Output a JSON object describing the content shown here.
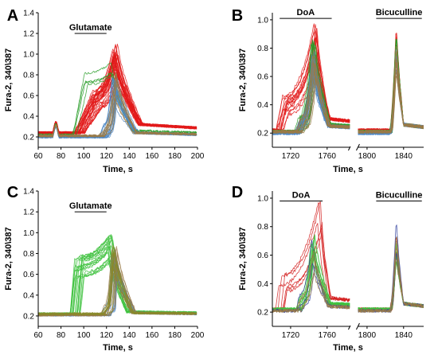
{
  "chart_data": [
    {
      "panel": "A",
      "type": "line",
      "xlabel": "Time,  s",
      "ylabel": "Fura-2, 340\\387",
      "xlim": [
        60,
        200
      ],
      "ylim": [
        0.1,
        1.4
      ],
      "xticks": [
        "60",
        "80",
        "100",
        "120",
        "140",
        "160",
        "180",
        "200"
      ],
      "yticks": [
        "0.2",
        "0.4",
        "0.6",
        "0.8",
        "1.0",
        "1.2",
        "1.4"
      ],
      "annotations": [
        {
          "text": "Glutamate",
          "x_start": 92,
          "x_end": 120,
          "y": 1.2
        }
      ],
      "series": [
        {
          "color": "#e21a1a",
          "count": 34,
          "base": 0.24,
          "rise_start": 96,
          "rise_end": 112,
          "plateau": 0.62,
          "peak_x": 128,
          "peak": 1.02,
          "decay_end": 150,
          "tail": 0.32
        },
        {
          "color": "#2a9d2a",
          "count": 4,
          "base": 0.22,
          "rise_start": 94,
          "rise_end": 104,
          "plateau": 0.9,
          "peak_x": 126,
          "peak": 1.02,
          "decay_end": 144,
          "tail": 0.26
        },
        {
          "color": "#4f88c6",
          "count": 16,
          "base": 0.2,
          "rise_start": 118,
          "rise_end": 122,
          "plateau": 0.3,
          "peak_x": 127,
          "peak": 0.74,
          "decay_end": 146,
          "tail": 0.24
        },
        {
          "color": "#9a7a46",
          "count": 8,
          "base": 0.21,
          "rise_start": 117,
          "rise_end": 121,
          "plateau": 0.3,
          "peak_x": 128,
          "peak": 0.8,
          "decay_end": 146,
          "tail": 0.24
        }
      ]
    },
    {
      "panel": "B",
      "type": "line",
      "xlabel": "Time,  s",
      "ylabel": "Fura-2, 340\\387",
      "ylim": [
        0.1,
        1.05
      ],
      "segments": [
        [
          1700,
          1785
        ],
        [
          1790,
          1862
        ]
      ],
      "xticks": [
        "1720",
        "1760",
        "1800",
        "1840"
      ],
      "yticks": [
        "0.2",
        "0.4",
        "0.6",
        "0.8",
        "1.0"
      ],
      "annotations": [
        {
          "text": "DoA",
          "x_start": 1708,
          "x_end": 1765,
          "y": 1.01
        },
        {
          "text": "Bicuculline",
          "x_start": 1810,
          "x_end": 1860,
          "y": 1.01
        }
      ],
      "series": [
        {
          "color": "#e21a1a",
          "count": 14,
          "base": 0.22,
          "rise_start": 1708,
          "rise_end": 1715,
          "plateau": 0.42,
          "peak_x": 1748,
          "peak": 0.9,
          "decay_end": 1762,
          "tail": 0.3,
          "peak2": 0.88
        },
        {
          "color": "#2a9d2a",
          "count": 18,
          "base": 0.21,
          "rise_start": 1728,
          "rise_end": 1733,
          "plateau": 0.3,
          "peak_x": 1745,
          "peak": 0.85,
          "decay_end": 1762,
          "tail": 0.26,
          "peak2": 0.9
        },
        {
          "color": "#4f88c6",
          "count": 16,
          "base": 0.2,
          "rise_start": 1728,
          "rise_end": 1733,
          "plateau": 0.3,
          "peak_x": 1745,
          "peak": 0.78,
          "decay_end": 1762,
          "tail": 0.25,
          "peak2": 0.82
        },
        {
          "color": "#9a7a46",
          "count": 10,
          "base": 0.21,
          "rise_start": 1729,
          "rise_end": 1734,
          "plateau": 0.3,
          "peak_x": 1746,
          "peak": 0.76,
          "decay_end": 1762,
          "tail": 0.25,
          "peak2": 0.8
        }
      ]
    },
    {
      "panel": "C",
      "type": "line",
      "xlabel": "Time,  s",
      "ylabel": "Fura-2, 340\\387",
      "xlim": [
        60,
        200
      ],
      "ylim": [
        0.1,
        1.4
      ],
      "xticks": [
        "60",
        "80",
        "100",
        "120",
        "140",
        "160",
        "180",
        "200"
      ],
      "yticks": [
        "0.2",
        "0.4",
        "0.6",
        "0.8",
        "1.0",
        "1.2",
        "1.4"
      ],
      "annotations": [
        {
          "text": "Glutamate",
          "x_start": 92,
          "x_end": 120,
          "y": 1.2
        }
      ],
      "series": [
        {
          "color": "#3fc23f",
          "count": 20,
          "base": 0.22,
          "rise_start": 93,
          "rise_end": 97,
          "plateau": 0.72,
          "peak_x": 124,
          "peak": 0.92,
          "decay_end": 140,
          "tail": 0.24
        },
        {
          "color": "#4f88c6",
          "count": 12,
          "base": 0.21,
          "rise_start": 119,
          "rise_end": 123,
          "plateau": 0.3,
          "peak_x": 127,
          "peak": 0.82,
          "decay_end": 144,
          "tail": 0.23
        },
        {
          "color": "#9a7a46",
          "count": 10,
          "base": 0.21,
          "rise_start": 119,
          "rise_end": 123,
          "plateau": 0.3,
          "peak_x": 127,
          "peak": 0.86,
          "decay_end": 144,
          "tail": 0.23
        },
        {
          "color": "#8a8a2a",
          "count": 8,
          "base": 0.22,
          "rise_start": 119,
          "rise_end": 123,
          "plateau": 0.3,
          "peak_x": 127,
          "peak": 0.9,
          "decay_end": 144,
          "tail": 0.23
        }
      ]
    },
    {
      "panel": "D",
      "type": "line",
      "xlabel": "Time,  s",
      "ylabel": "Fura-2, 340\\387",
      "ylim": [
        0.1,
        1.05
      ],
      "segments": [
        [
          1700,
          1785
        ],
        [
          1790,
          1862
        ]
      ],
      "xticks": [
        "1720",
        "1760",
        "1800",
        "1840"
      ],
      "yticks": [
        "0.2",
        "0.4",
        "0.6",
        "0.8",
        "1.0"
      ],
      "annotations": [
        {
          "text": "DoA",
          "x_start": 1708,
          "x_end": 1755,
          "y": 0.98
        },
        {
          "text": "Bicuculline",
          "x_start": 1810,
          "x_end": 1860,
          "y": 0.98
        }
      ],
      "series": [
        {
          "color": "#d42020",
          "count": 6,
          "base": 0.22,
          "rise_start": 1708,
          "rise_end": 1712,
          "plateau": 0.42,
          "peak_x": 1752,
          "peak": 0.9,
          "decay_end": 1762,
          "tail": 0.3,
          "peak2": 0.7
        },
        {
          "color": "#3fc23f",
          "count": 12,
          "base": 0.22,
          "rise_start": 1728,
          "rise_end": 1733,
          "plateau": 0.32,
          "peak_x": 1744,
          "peak": 0.72,
          "decay_end": 1762,
          "tail": 0.26,
          "peak2": 0.68
        },
        {
          "color": "#2b3c9c",
          "count": 3,
          "base": 0.21,
          "rise_start": 1729,
          "rise_end": 1733,
          "plateau": 0.3,
          "peak_x": 1745,
          "peak": 0.68,
          "decay_end": 1762,
          "tail": 0.24,
          "peak2": 0.8
        },
        {
          "color": "#9a7a46",
          "count": 4,
          "base": 0.21,
          "rise_start": 1729,
          "rise_end": 1734,
          "plateau": 0.3,
          "peak_x": 1746,
          "peak": 0.62,
          "decay_end": 1762,
          "tail": 0.24,
          "peak2": 0.74
        }
      ]
    }
  ]
}
